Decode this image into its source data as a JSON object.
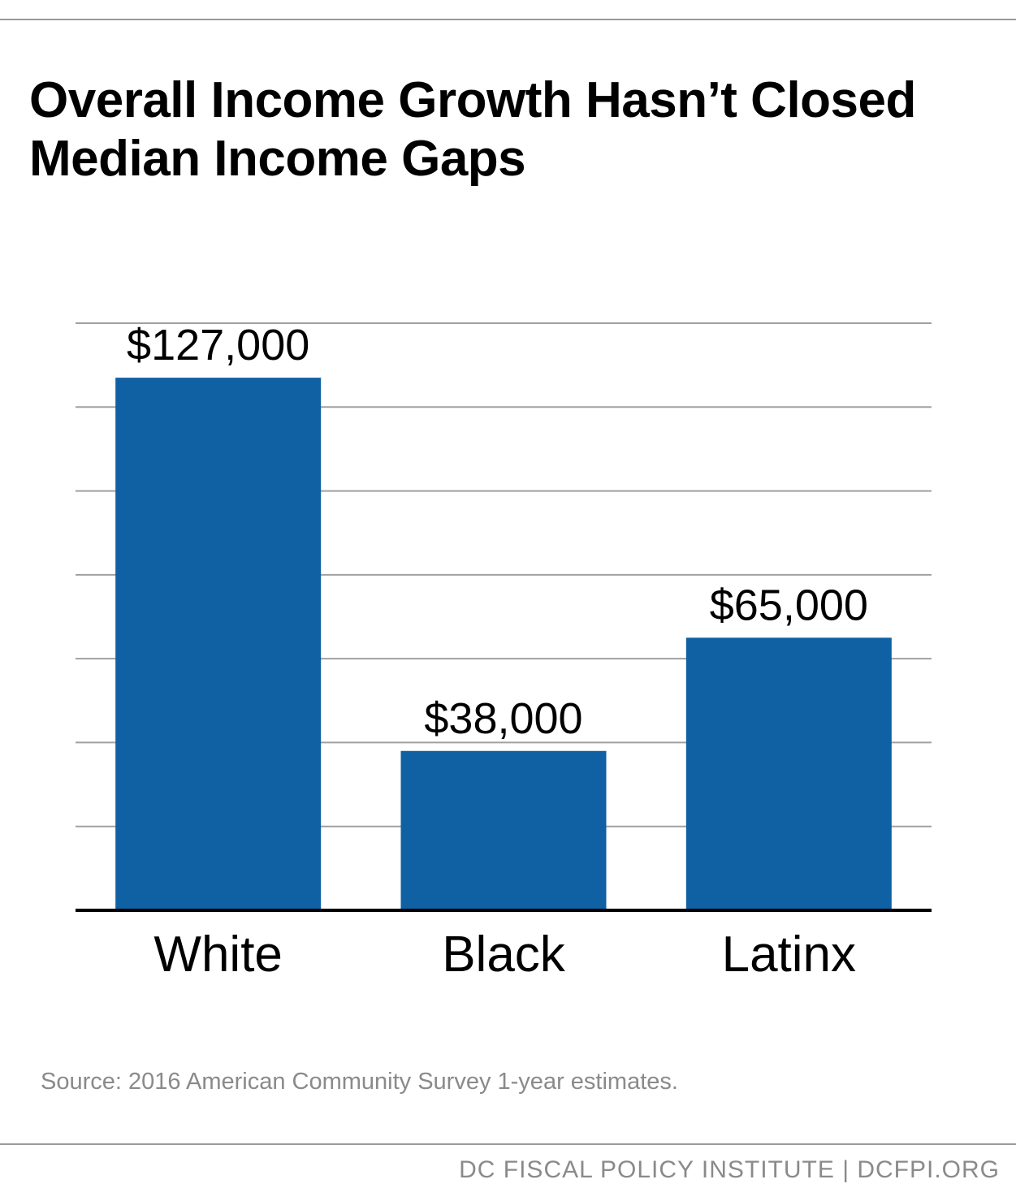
{
  "title": "Overall Income Growth Hasn’t Closed Median Income Gaps",
  "source": "Source: 2016 American Community Survey 1-year estimates.",
  "footer": "DC FISCAL POLICY INSTITUTE | DCFPI.ORG",
  "colors": {
    "bar": "#0f61a3",
    "grid": "#a0a0a0",
    "baseline": "#000000",
    "muted_text": "#8a8a8a"
  },
  "chart_data": {
    "type": "bar",
    "categories": [
      "White",
      "Black",
      "Latinx"
    ],
    "values": [
      127000,
      38000,
      65000
    ],
    "value_labels": [
      "$127,000",
      "$38,000",
      "$65,000"
    ],
    "ylim": [
      0,
      140000
    ],
    "grid": true,
    "gridline_count": 7
  }
}
